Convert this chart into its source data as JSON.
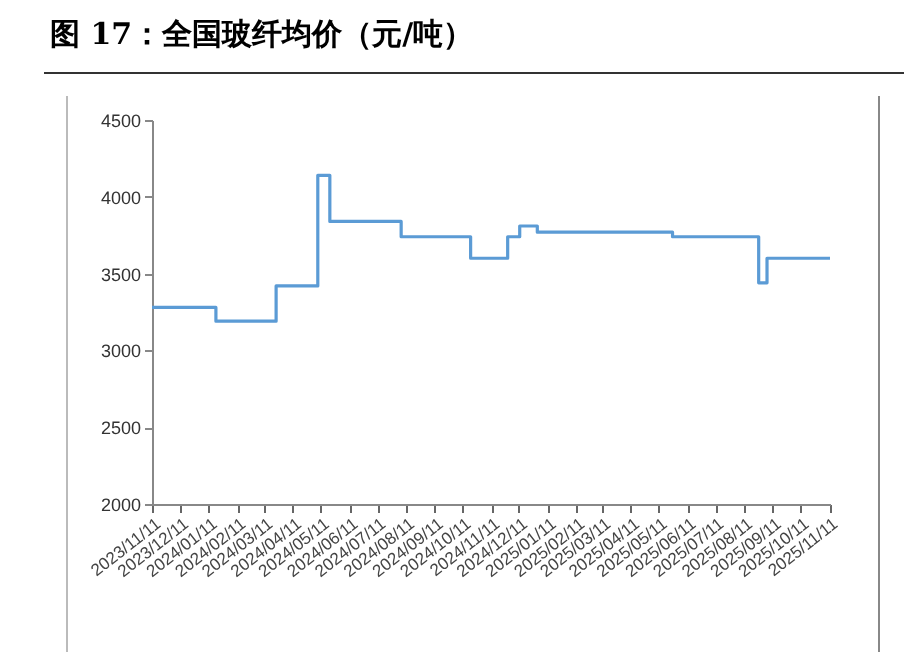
{
  "chart_data": {
    "type": "step",
    "title": "图 17：全国玻纤均价（元/吨）",
    "x": [
      "2023-11-11",
      "2024-01-19",
      "2024-03-24",
      "2024-05-08",
      "2024-05-21",
      "2024-08-06",
      "2024-10-20",
      "2024-11-29",
      "2024-12-12",
      "2024-12-31",
      "2025-05-26",
      "2025-08-27",
      "2025-09-05",
      "2025-11-12"
    ],
    "series": [
      {
        "color": "#5b9bd5",
        "values": [
          3280,
          3190,
          3420,
          4140,
          3840,
          3740,
          3600,
          3740,
          3810,
          3770,
          3740,
          3440,
          3600,
          3600
        ]
      }
    ],
    "xlim": [
      "2023-11-11",
      "2025-11-12"
    ],
    "xticks": [
      {
        "value": "2023-11-11",
        "label": "2023/11/11"
      },
      {
        "value": "2023-12-11",
        "label": "2023/12/11"
      },
      {
        "value": "2024-01-11",
        "label": "2024/01/11"
      },
      {
        "value": "2024-02-11",
        "label": "2024/02/11"
      },
      {
        "value": "2024-03-11",
        "label": "2024/03/11"
      },
      {
        "value": "2024-04-11",
        "label": "2024/04/11"
      },
      {
        "value": "2024-05-11",
        "label": "2024/05/11"
      },
      {
        "value": "2024-06-11",
        "label": "2024/06/11"
      },
      {
        "value": "2024-07-11",
        "label": "2024/07/11"
      },
      {
        "value": "2024-08-11",
        "label": "2024/08/11"
      },
      {
        "value": "2024-09-11",
        "label": "2024/09/11"
      },
      {
        "value": "2024-10-11",
        "label": "2024/10/11"
      },
      {
        "value": "2024-11-11",
        "label": "2024/11/11"
      },
      {
        "value": "2024-12-11",
        "label": "2024/12/11"
      },
      {
        "value": "2025-01-11",
        "label": "2025/01/11"
      },
      {
        "value": "2025-02-11",
        "label": "2025/02/11"
      },
      {
        "value": "2025-03-11",
        "label": "2025/03/11"
      },
      {
        "value": "2025-04-11",
        "label": "2025/04/11"
      },
      {
        "value": "2025-05-11",
        "label": "2025/05/11"
      },
      {
        "value": "2025-06-11",
        "label": "2025/06/11"
      },
      {
        "value": "2025-07-11",
        "label": "2025/07/11"
      },
      {
        "value": "2025-08-11",
        "label": "2025/08/11"
      },
      {
        "value": "2025-09-11",
        "label": "2025/09/11"
      },
      {
        "value": "2025-10-11",
        "label": "2025/10/11"
      },
      {
        "value": "2025-11-11",
        "label": "2025/11/11"
      }
    ],
    "ylim": [
      2000,
      4500
    ],
    "yticks": [
      2000,
      2500,
      3000,
      3500,
      4000,
      4500
    ]
  }
}
